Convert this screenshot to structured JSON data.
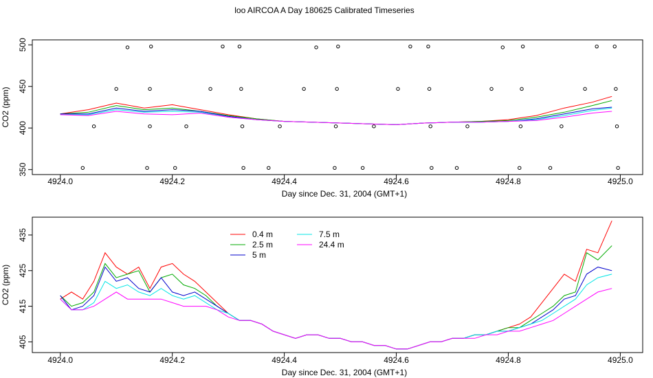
{
  "figure": {
    "title": "loo AIRCOA A  Day 180625  Calibrated Timeseries"
  },
  "colors": {
    "0.4 m": "#ff0000",
    "2.5 m": "#00aa00",
    "5 m": "#0000cc",
    "7.5 m": "#00e5e5",
    "24.4 m": "#ff00ff",
    "outliers": "#000000"
  },
  "chart_data": [
    {
      "type": "line",
      "panel": "top",
      "xlabel": "Day since Dec. 31, 2004 (GMT+1)",
      "ylabel": "CO2 (ppm)",
      "xlim": [
        4924.0,
        4925.0
      ],
      "ylim": [
        350,
        500
      ],
      "xticks": [
        "4924.0",
        "4924.2",
        "4924.4",
        "4924.6",
        "4924.8",
        "4925.0"
      ],
      "yticks": [
        "350",
        "400",
        "450",
        "500"
      ],
      "series_x": [
        4924.0,
        4924.05,
        4924.1,
        4924.15,
        4924.2,
        4924.25,
        4924.3,
        4924.35,
        4924.4,
        4924.45,
        4924.5,
        4924.55,
        4924.6,
        4924.65,
        4924.7,
        4924.75,
        4924.8,
        4924.85,
        4924.9,
        4924.95,
        4924.985
      ],
      "series": [
        {
          "name": "0.4 m",
          "values": [
            417,
            422,
            430,
            424,
            428,
            422,
            416,
            411,
            408,
            407,
            406,
            405,
            404,
            406,
            407,
            408,
            410,
            415,
            424,
            431,
            438
          ]
        },
        {
          "name": "2.5 m",
          "values": [
            417,
            419,
            427,
            422,
            424,
            420,
            415,
            411,
            408,
            407,
            406,
            405,
            404,
            406,
            407,
            408,
            409,
            413,
            419,
            427,
            433
          ]
        },
        {
          "name": "5 m",
          "values": [
            417,
            417,
            424,
            420,
            422,
            420,
            414,
            410,
            408,
            407,
            406,
            405,
            404,
            406,
            407,
            407,
            408,
            411,
            417,
            423,
            425
          ]
        },
        {
          "name": "7.5 m",
          "values": [
            416,
            416,
            422,
            419,
            420,
            419,
            413,
            410,
            408,
            407,
            406,
            405,
            404,
            406,
            407,
            407,
            408,
            410,
            415,
            421,
            424
          ]
        },
        {
          "name": "24.4 m",
          "values": [
            416,
            415,
            420,
            417,
            416,
            418,
            413,
            410,
            408,
            407,
            406,
            405,
            404,
            406,
            407,
            407,
            408,
            409,
            413,
            418,
            420
          ]
        }
      ],
      "outlier_points": [
        {
          "x": 4924.04,
          "y": 352
        },
        {
          "x": 4924.06,
          "y": 402
        },
        {
          "x": 4924.1,
          "y": 447
        },
        {
          "x": 4924.12,
          "y": 497
        },
        {
          "x": 4924.155,
          "y": 352
        },
        {
          "x": 4924.16,
          "y": 402
        },
        {
          "x": 4924.16,
          "y": 447
        },
        {
          "x": 4924.162,
          "y": 498
        },
        {
          "x": 4924.205,
          "y": 352
        },
        {
          "x": 4924.225,
          "y": 402
        },
        {
          "x": 4924.268,
          "y": 447
        },
        {
          "x": 4924.29,
          "y": 498
        },
        {
          "x": 4924.32,
          "y": 498
        },
        {
          "x": 4924.323,
          "y": 447
        },
        {
          "x": 4924.325,
          "y": 402
        },
        {
          "x": 4924.327,
          "y": 352
        },
        {
          "x": 4924.372,
          "y": 352
        },
        {
          "x": 4924.392,
          "y": 402
        },
        {
          "x": 4924.435,
          "y": 447
        },
        {
          "x": 4924.457,
          "y": 497
        },
        {
          "x": 4924.49,
          "y": 352
        },
        {
          "x": 4924.492,
          "y": 402
        },
        {
          "x": 4924.494,
          "y": 447
        },
        {
          "x": 4924.496,
          "y": 498
        },
        {
          "x": 4924.54,
          "y": 352
        },
        {
          "x": 4924.56,
          "y": 402
        },
        {
          "x": 4924.603,
          "y": 447
        },
        {
          "x": 4924.625,
          "y": 498
        },
        {
          "x": 4924.657,
          "y": 498
        },
        {
          "x": 4924.659,
          "y": 447
        },
        {
          "x": 4924.661,
          "y": 402
        },
        {
          "x": 4924.663,
          "y": 352
        },
        {
          "x": 4924.708,
          "y": 352
        },
        {
          "x": 4924.727,
          "y": 402
        },
        {
          "x": 4924.77,
          "y": 447
        },
        {
          "x": 4924.79,
          "y": 497
        },
        {
          "x": 4924.82,
          "y": 352
        },
        {
          "x": 4924.822,
          "y": 402
        },
        {
          "x": 4924.824,
          "y": 447
        },
        {
          "x": 4924.826,
          "y": 498
        },
        {
          "x": 4924.875,
          "y": 352
        },
        {
          "x": 4924.895,
          "y": 402
        },
        {
          "x": 4924.937,
          "y": 447
        },
        {
          "x": 4924.958,
          "y": 498
        },
        {
          "x": 4924.99,
          "y": 498
        },
        {
          "x": 4924.992,
          "y": 447
        },
        {
          "x": 4924.994,
          "y": 402
        },
        {
          "x": 4924.996,
          "y": 352
        }
      ]
    },
    {
      "type": "line",
      "panel": "bottom",
      "xlabel": "Day since Dec. 31, 2004 (GMT+1)",
      "ylabel": "CO2 (ppm)",
      "xlim": [
        4924.0,
        4925.0
      ],
      "ylim": [
        403,
        439
      ],
      "xticks": [
        "4924.0",
        "4924.2",
        "4924.4",
        "4924.6",
        "4924.8",
        "4925.0"
      ],
      "yticks": [
        "405",
        "415",
        "425",
        "435"
      ],
      "legend_placement": "top-left",
      "series_x": [
        4924.0,
        4924.02,
        4924.04,
        4924.06,
        4924.08,
        4924.1,
        4924.12,
        4924.14,
        4924.16,
        4924.18,
        4924.2,
        4924.22,
        4924.24,
        4924.26,
        4924.28,
        4924.3,
        4924.32,
        4924.34,
        4924.36,
        4924.38,
        4924.4,
        4924.42,
        4924.44,
        4924.46,
        4924.48,
        4924.5,
        4924.52,
        4924.54,
        4924.56,
        4924.58,
        4924.6,
        4924.62,
        4924.64,
        4924.66,
        4924.68,
        4924.7,
        4924.72,
        4924.74,
        4924.76,
        4924.78,
        4924.8,
        4924.82,
        4924.84,
        4924.86,
        4924.88,
        4924.9,
        4924.92,
        4924.94,
        4924.96,
        4924.985
      ],
      "series": [
        {
          "name": "0.4 m",
          "values": [
            417,
            419,
            417,
            422,
            430,
            426,
            424,
            426,
            420,
            426,
            427,
            424,
            422,
            419,
            416,
            413,
            411,
            411,
            410,
            408,
            407,
            406,
            407,
            407,
            406,
            406,
            405,
            405,
            404,
            404,
            403,
            403,
            404,
            405,
            405,
            406,
            406,
            407,
            407,
            408,
            409,
            410,
            412,
            416,
            420,
            424,
            422,
            431,
            430,
            439
          ]
        },
        {
          "name": "2.5 m",
          "values": [
            418,
            415,
            416,
            419,
            427,
            423,
            424,
            425,
            419,
            423,
            424,
            421,
            420,
            418,
            415,
            413,
            411,
            411,
            410,
            408,
            407,
            406,
            407,
            407,
            406,
            406,
            405,
            405,
            404,
            404,
            403,
            403,
            404,
            405,
            405,
            406,
            406,
            407,
            407,
            408,
            409,
            409,
            411,
            413,
            415,
            418,
            419,
            430,
            428,
            432
          ]
        },
        {
          "name": "5 m",
          "values": [
            418,
            414,
            415,
            418,
            426,
            422,
            423,
            420,
            419,
            423,
            419,
            418,
            419,
            417,
            415,
            413,
            411,
            411,
            410,
            408,
            407,
            406,
            407,
            407,
            406,
            406,
            405,
            405,
            404,
            404,
            403,
            403,
            404,
            405,
            405,
            406,
            406,
            407,
            407,
            408,
            408,
            409,
            410,
            412,
            414,
            417,
            418,
            424,
            426,
            425
          ]
        },
        {
          "name": "7.5 m",
          "values": [
            417,
            414,
            414,
            416,
            422,
            420,
            421,
            419,
            418,
            420,
            418,
            417,
            418,
            416,
            414,
            413,
            411,
            411,
            410,
            408,
            407,
            406,
            407,
            407,
            406,
            406,
            405,
            405,
            404,
            404,
            403,
            403,
            404,
            405,
            405,
            406,
            406,
            407,
            407,
            408,
            408,
            409,
            410,
            411,
            413,
            415,
            417,
            421,
            423,
            424
          ]
        },
        {
          "name": "24.4 m",
          "values": [
            417,
            414,
            414,
            415,
            417,
            419,
            417,
            417,
            417,
            417,
            416,
            415,
            415,
            415,
            414,
            412,
            411,
            411,
            410,
            408,
            407,
            406,
            407,
            407,
            406,
            406,
            405,
            405,
            404,
            404,
            403,
            403,
            404,
            405,
            405,
            406,
            406,
            406,
            407,
            407,
            408,
            408,
            409,
            410,
            411,
            413,
            415,
            417,
            419,
            420
          ]
        }
      ]
    }
  ]
}
